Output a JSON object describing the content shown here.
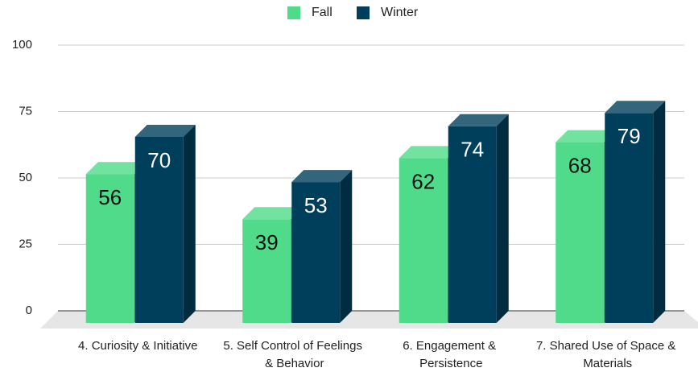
{
  "chart_data": {
    "type": "bar3d",
    "categories": [
      "4. Curiosity & Initiative",
      "5. Self Control of Feelings & Behavior",
      "6. Engagement & Persistence",
      "7. Shared Use of Space & Materials"
    ],
    "series": [
      {
        "name": "Fall",
        "color": "#4fdb8a",
        "values": [
          56,
          39,
          62,
          68
        ]
      },
      {
        "name": "Winter",
        "color": "#003f5c",
        "values": [
          70,
          53,
          74,
          79
        ]
      }
    ],
    "ylim": [
      0,
      100
    ],
    "yticks": [
      0,
      25,
      50,
      75,
      100
    ],
    "grid": true,
    "legend": "top"
  }
}
